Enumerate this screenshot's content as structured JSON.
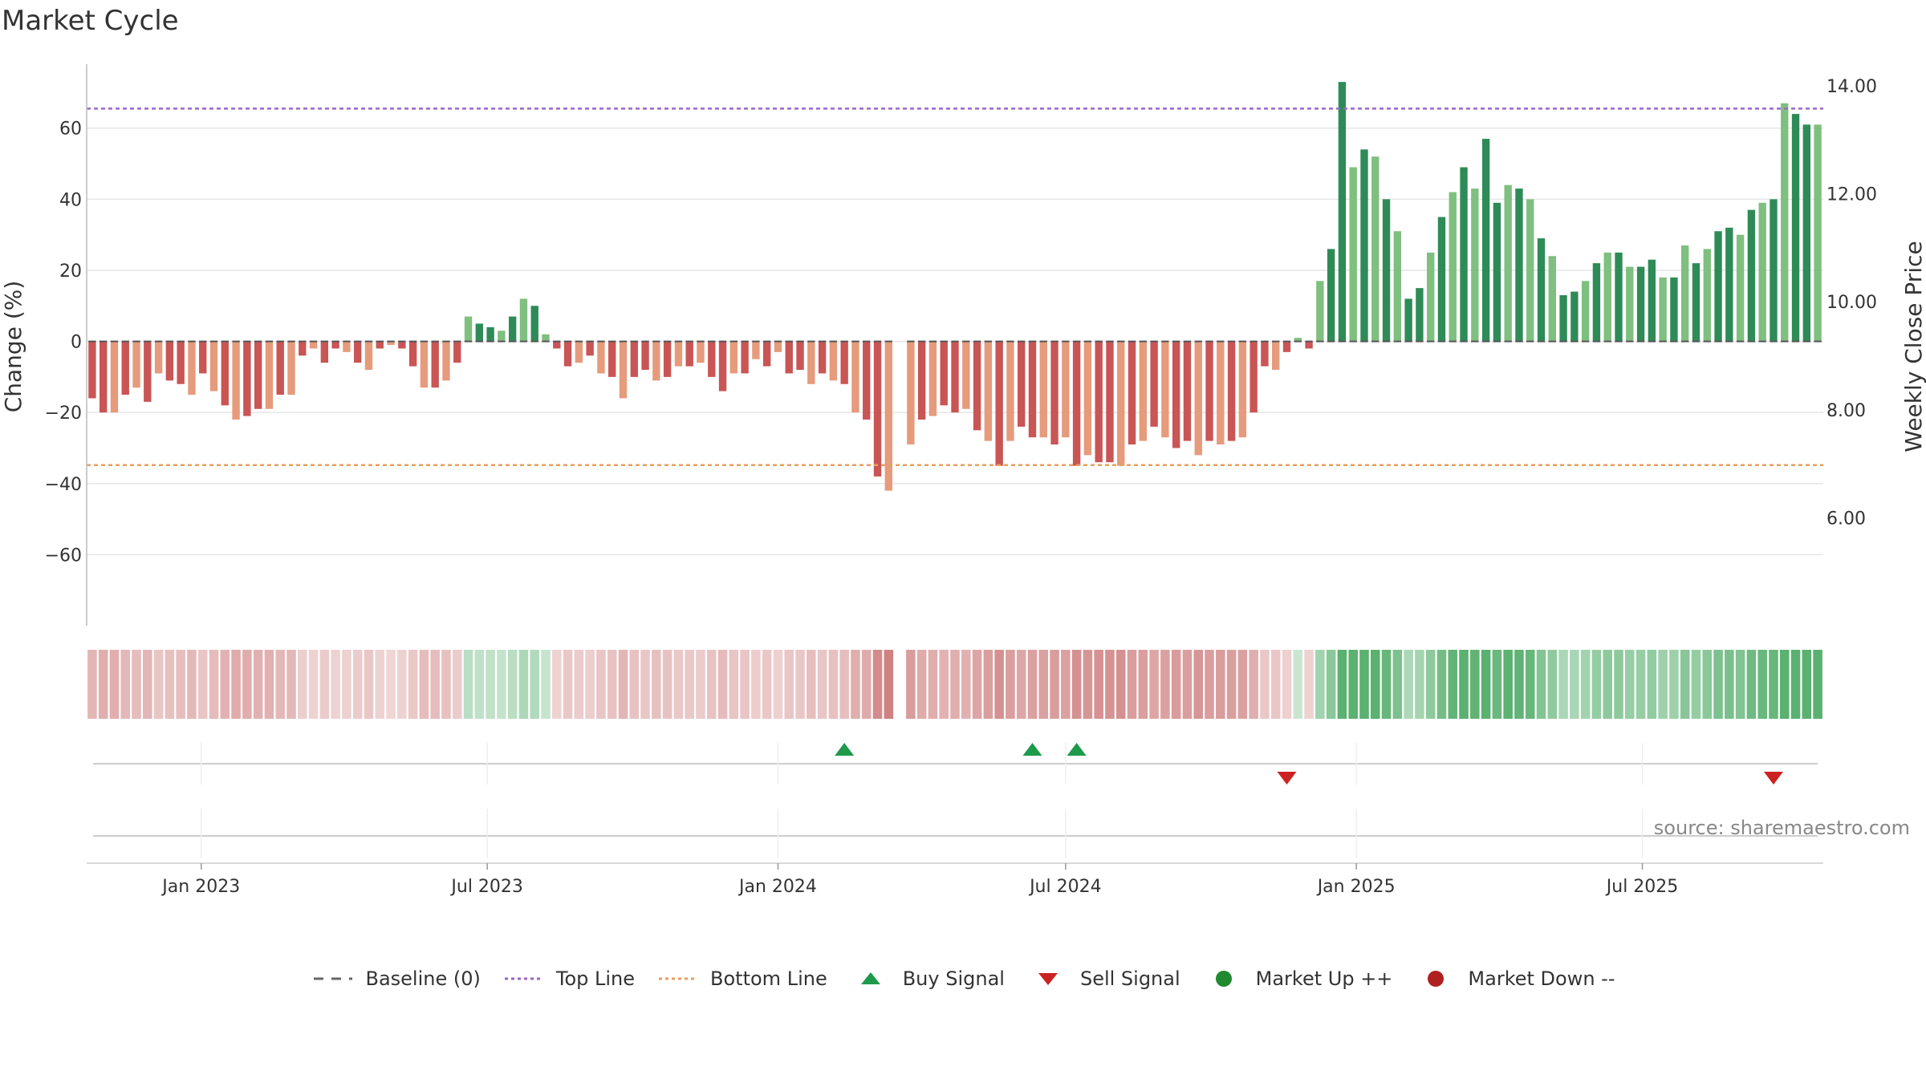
{
  "title": "Market Cycle",
  "source": "source: sharemaestro.com",
  "colors": {
    "down_dark": "#c95555",
    "down_light": "#e59b7c",
    "up_dark": "#2e8b57",
    "up_light": "#7fbf7f",
    "top_line": "#9a66cc",
    "bottom_line": "#e6a060",
    "buy": "#1e9a4a",
    "sell": "#cc2222",
    "market_up": "#1f8a30",
    "market_down": "#b02020",
    "grid": "#e6e6e6"
  },
  "legend": [
    {
      "key": "baseline",
      "label": "Baseline (0)",
      "style": "dash",
      "color": "#666666"
    },
    {
      "key": "top",
      "label": "Top Line",
      "style": "dot",
      "color": "#9a66cc"
    },
    {
      "key": "bottom",
      "label": "Bottom Line",
      "style": "dot",
      "color": "#e6a060"
    },
    {
      "key": "buy",
      "label": "Buy Signal",
      "style": "tri-up",
      "color": "#1e9a4a"
    },
    {
      "key": "sell",
      "label": "Sell Signal",
      "style": "tri-down",
      "color": "#cc2222"
    },
    {
      "key": "mup",
      "label": "Market Up ++",
      "style": "dot-circle",
      "color": "#1f8a30"
    },
    {
      "key": "mdown",
      "label": "Market Down --",
      "style": "dot-circle",
      "color": "#b02020"
    }
  ],
  "chart_data": {
    "type": "bar",
    "start_date": "2022-10-24",
    "interval_days": 7,
    "ylabel": "Change (%)",
    "ylim": [
      -80,
      78
    ],
    "yticks": [
      60,
      40,
      20,
      0,
      -20,
      -40,
      -60
    ],
    "y2label": "Weekly Close Price",
    "y2lim": [
      4.0,
      14.4
    ],
    "y2ticks": [
      "14.00",
      "12.00",
      "10.00",
      "8.00",
      "6.00"
    ],
    "top_line": 65.5,
    "bottom_line": -34.8,
    "xticks": [
      {
        "label": "Jan 2023",
        "date": "2023-01-01"
      },
      {
        "label": "Jul 2023",
        "date": "2023-07-01"
      },
      {
        "label": "Jan 2024",
        "date": "2024-01-01"
      },
      {
        "label": "Jul 2024",
        "date": "2024-07-01"
      },
      {
        "label": "Jan 2025",
        "date": "2025-01-01"
      },
      {
        "label": "Jul 2025",
        "date": "2025-07-01"
      }
    ],
    "values": [
      -16,
      -20,
      -20,
      -15,
      -13,
      -17,
      -9,
      -11,
      -12,
      -15,
      -9,
      -14,
      -18,
      -22,
      -21,
      -19,
      -19,
      -15,
      -15,
      -4,
      -2,
      -6,
      -2,
      -3,
      -6,
      -8,
      -2,
      -1,
      -2,
      -7,
      -13,
      -13,
      -11,
      -6,
      7,
      5,
      4,
      3,
      7,
      12,
      10,
      2,
      -2,
      -7,
      -6,
      -4,
      -9,
      -10,
      -16,
      -10,
      -8,
      -11,
      -10,
      -7,
      -7,
      -6,
      -10,
      -14,
      -9,
      -9,
      -5,
      -7,
      -3,
      -9,
      -8,
      -12,
      -9,
      -11,
      -12,
      -20,
      -22,
      -38,
      -42,
      null,
      -29,
      -22,
      -21,
      -18,
      -20,
      -19,
      -25,
      -28,
      -35,
      -28,
      -24,
      -27,
      -27,
      -29,
      -27,
      -35,
      -32,
      -34,
      -34,
      -35,
      -29,
      -28,
      -24,
      -27,
      -30,
      -28,
      -32,
      -28,
      -29,
      -28,
      -27,
      -20,
      -7,
      -8,
      -3,
      1,
      -2,
      17,
      26,
      73,
      49,
      54,
      52,
      40,
      31,
      12,
      15,
      25,
      35,
      42,
      49,
      43,
      57,
      39,
      44,
      43,
      40,
      29,
      24,
      13,
      14,
      17,
      22,
      25,
      25,
      21,
      21,
      23,
      18,
      18,
      27,
      22,
      26,
      31,
      32,
      30,
      37,
      39,
      40,
      67,
      64,
      61,
      61
    ],
    "buy_signals": [
      "2024-02-12",
      "2024-06-10",
      "2024-07-08"
    ],
    "sell_signals": [
      "2024-11-18",
      "2025-09-22"
    ]
  }
}
